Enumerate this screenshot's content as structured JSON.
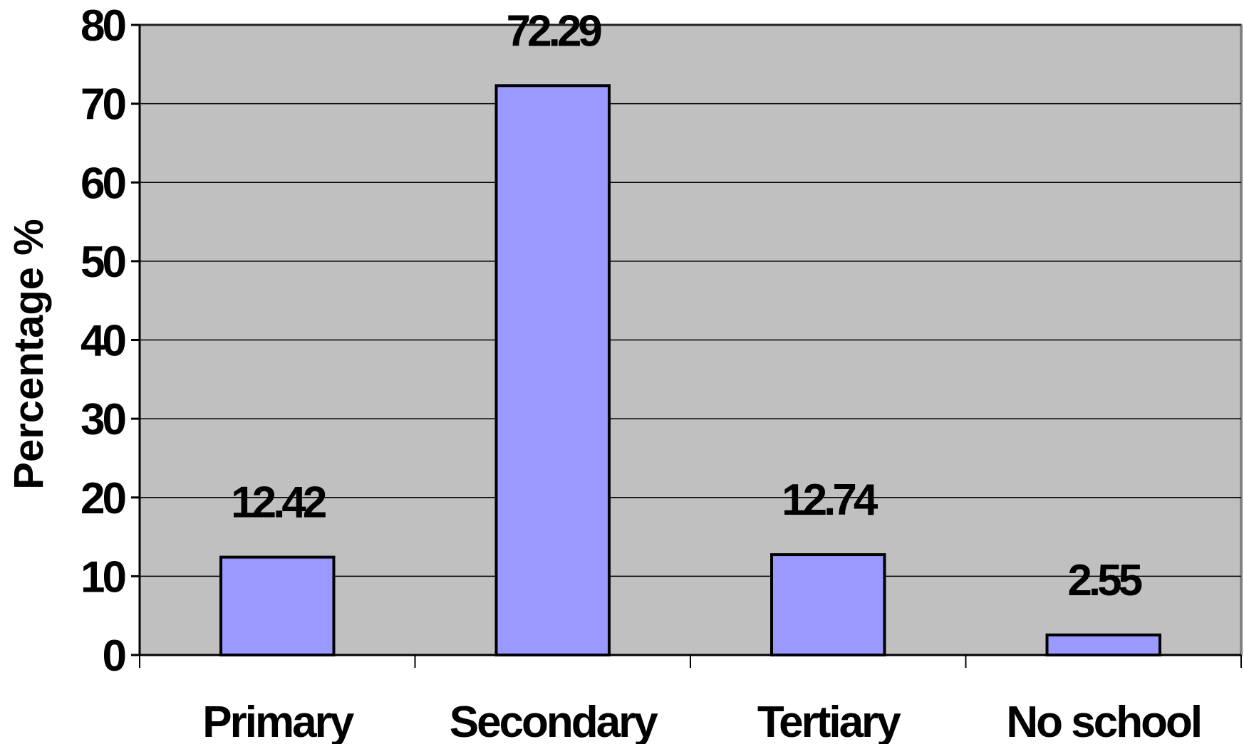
{
  "chart_data": {
    "type": "bar",
    "title": "",
    "xlabel": "",
    "ylabel": "Percentage %",
    "categories": [
      "Primary",
      "Secondary",
      "Tertiary",
      "No school"
    ],
    "values": [
      12.42,
      72.29,
      12.74,
      2.55
    ],
    "value_labels": [
      "12.42",
      "72.29",
      "12.74",
      "2.55"
    ],
    "ylim": [
      0,
      80
    ],
    "yticks": [
      0,
      10,
      20,
      30,
      40,
      50,
      60,
      70,
      80
    ],
    "ytick_labels": [
      "0",
      "10",
      "20",
      "30",
      "40",
      "50",
      "60",
      "70",
      "80"
    ],
    "grid": true,
    "legend": "none",
    "colors": {
      "bar_fill": "#9999ff",
      "bar_stroke": "#000000",
      "plot_background": "#c0c0c0",
      "gridline": "#000000",
      "page_background": "#ffffff"
    }
  }
}
